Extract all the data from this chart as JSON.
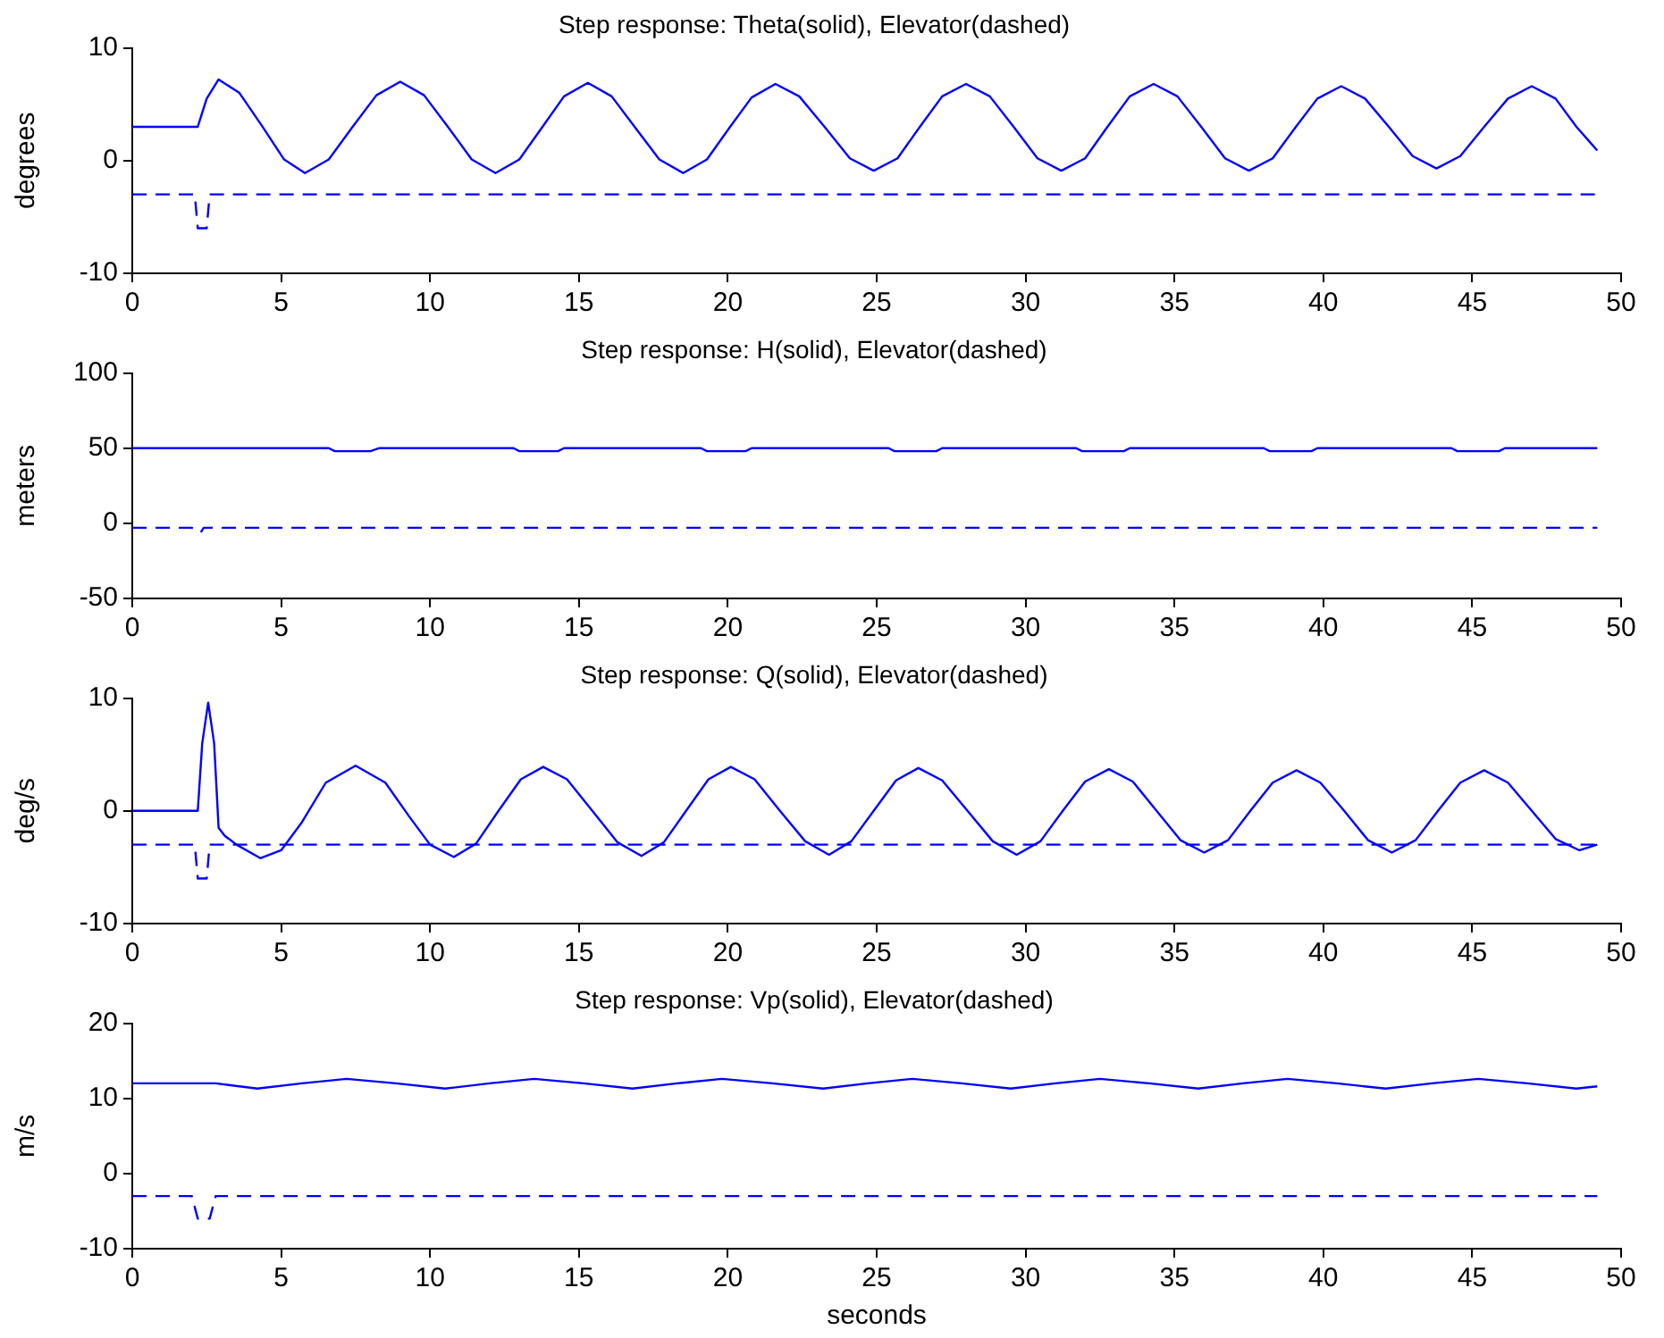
{
  "chart_data": [
    {
      "type": "line",
      "title": "Step response: Theta(solid), Elevator(dashed)",
      "ylabel": "degrees",
      "xlim": [
        0,
        50
      ],
      "xticks": [
        0,
        5,
        10,
        15,
        20,
        25,
        30,
        35,
        40,
        45,
        50
      ],
      "ylim": [
        -10,
        10
      ],
      "yticks": [
        -10,
        0,
        10
      ],
      "grid": false,
      "series": [
        {
          "color": "#0000ff",
          "line_style": "solid",
          "x": [
            0,
            2.2,
            2.5,
            2.9,
            3.6,
            4.35,
            5.1,
            5.8,
            6.6,
            7.4,
            8.2,
            9.0,
            9.8,
            10.6,
            11.4,
            12.2,
            13.0,
            13.75,
            14.5,
            15.3,
            16.1,
            16.9,
            17.7,
            18.5,
            19.3,
            20.05,
            20.8,
            21.6,
            22.4,
            23.25,
            24.1,
            24.9,
            25.7,
            26.45,
            27.2,
            28.0,
            28.8,
            29.6,
            30.4,
            31.2,
            32.0,
            32.75,
            33.5,
            34.3,
            35.1,
            35.9,
            36.7,
            37.5,
            38.3,
            39.05,
            39.8,
            40.6,
            41.4,
            42.2,
            43.0,
            43.8,
            44.6,
            45.4,
            46.2,
            47.0,
            47.8,
            48.5,
            49.2
          ],
          "values": [
            3,
            3,
            5.5,
            7.2,
            6.0,
            3.1,
            0.1,
            -1.1,
            0.1,
            3.0,
            5.8,
            7.0,
            5.8,
            3.0,
            0.1,
            -1.1,
            0.1,
            2.9,
            5.7,
            6.9,
            5.7,
            2.9,
            0.1,
            -1.1,
            0.1,
            2.9,
            5.6,
            6.8,
            5.7,
            3.0,
            0.2,
            -0.9,
            0.2,
            3.0,
            5.7,
            6.8,
            5.7,
            3.0,
            0.2,
            -0.9,
            0.2,
            3.0,
            5.7,
            6.8,
            5.7,
            3.0,
            0.2,
            -0.9,
            0.2,
            2.9,
            5.5,
            6.6,
            5.5,
            3.0,
            0.4,
            -0.7,
            0.4,
            3.0,
            5.5,
            6.6,
            5.5,
            3.0,
            0.9
          ]
        },
        {
          "color": "#0000ff",
          "line_style": "dashed",
          "x": [
            0,
            2.1,
            2.2,
            2.5,
            2.6,
            49.2
          ],
          "values": [
            -3,
            -3,
            -6,
            -6,
            -3,
            -3
          ]
        }
      ]
    },
    {
      "type": "line",
      "title": "Step response: H(solid), Elevator(dashed)",
      "ylabel": "meters",
      "xlim": [
        0,
        50
      ],
      "xticks": [
        0,
        5,
        10,
        15,
        20,
        25,
        30,
        35,
        40,
        45,
        50
      ],
      "ylim": [
        -50,
        100
      ],
      "yticks": [
        -50,
        0,
        50,
        100
      ],
      "grid": false,
      "series": [
        {
          "color": "#0000ff",
          "line_style": "solid",
          "x": [
            0,
            6.6,
            6.8,
            8.0,
            8.3,
            12.8,
            13.0,
            14.3,
            14.5,
            19.1,
            19.3,
            20.6,
            20.8,
            25.4,
            25.6,
            27.0,
            27.2,
            31.7,
            31.9,
            33.3,
            33.5,
            38.0,
            38.2,
            39.6,
            39.8,
            44.3,
            44.5,
            45.9,
            46.1,
            49.2
          ],
          "values": [
            50,
            50,
            48,
            48,
            50,
            50,
            48,
            48,
            50,
            50,
            48,
            48,
            50,
            50,
            48,
            48,
            50,
            50,
            48,
            48,
            50,
            50,
            48,
            48,
            50,
            50,
            48,
            48,
            50,
            50
          ]
        },
        {
          "color": "#0000ff",
          "line_style": "dashed",
          "x": [
            0,
            2.0,
            2.3,
            2.4,
            49.2
          ],
          "values": [
            -3,
            -3,
            -6,
            -3,
            -3
          ]
        }
      ]
    },
    {
      "type": "line",
      "title": "Step response: Q(solid), Elevator(dashed)",
      "ylabel": "deg/s",
      "xlim": [
        0,
        50
      ],
      "xticks": [
        0,
        5,
        10,
        15,
        20,
        25,
        30,
        35,
        40,
        45,
        50
      ],
      "ylim": [
        -10,
        10
      ],
      "yticks": [
        -10,
        0,
        10
      ],
      "grid": false,
      "series": [
        {
          "color": "#0000ff",
          "line_style": "solid",
          "x": [
            0,
            2.2,
            2.35,
            2.55,
            2.75,
            2.9,
            3.1,
            3.5,
            4.3,
            5.0,
            5.7,
            6.5,
            7.5,
            8.5,
            9.3,
            10.0,
            10.8,
            11.55,
            12.3,
            13.05,
            13.8,
            14.6,
            15.45,
            16.3,
            17.1,
            17.85,
            18.6,
            19.35,
            20.1,
            20.9,
            21.75,
            22.6,
            23.4,
            24.15,
            24.9,
            25.65,
            26.4,
            27.2,
            28.05,
            28.9,
            29.7,
            30.5,
            31.25,
            32.0,
            32.8,
            33.6,
            34.4,
            35.2,
            36.0,
            36.8,
            37.55,
            38.3,
            39.1,
            39.9,
            40.7,
            41.5,
            42.3,
            43.1,
            43.85,
            44.6,
            45.4,
            46.2,
            47.0,
            47.8,
            48.6,
            49.2
          ],
          "values": [
            0,
            0,
            6,
            9.6,
            6,
            -1.5,
            -2.2,
            -3,
            -4.2,
            -3.5,
            -1,
            2.5,
            4,
            2.5,
            -0.5,
            -3,
            -4.1,
            -2.9,
            0,
            2.8,
            3.9,
            2.8,
            0,
            -2.8,
            -4.0,
            -2.8,
            0,
            2.8,
            3.9,
            2.8,
            0,
            -2.7,
            -3.9,
            -2.7,
            0,
            2.7,
            3.8,
            2.7,
            0,
            -2.7,
            -3.9,
            -2.7,
            0,
            2.6,
            3.7,
            2.6,
            0,
            -2.6,
            -3.7,
            -2.6,
            0,
            2.5,
            3.6,
            2.5,
            0,
            -2.6,
            -3.7,
            -2.6,
            0,
            2.5,
            3.6,
            2.5,
            0,
            -2.5,
            -3.5,
            -3.0
          ]
        },
        {
          "color": "#0000ff",
          "line_style": "dashed",
          "x": [
            0,
            2.1,
            2.2,
            2.5,
            2.6,
            49.2
          ],
          "values": [
            -3,
            -3,
            -6,
            -6,
            -3,
            -3
          ]
        }
      ]
    },
    {
      "type": "line",
      "title": "Step response: Vp(solid), Elevator(dashed)",
      "ylabel": "m/s",
      "xlabel": "seconds",
      "xlim": [
        0,
        50
      ],
      "xticks": [
        0,
        5,
        10,
        15,
        20,
        25,
        30,
        35,
        40,
        45,
        50
      ],
      "ylim": [
        -10,
        20
      ],
      "yticks": [
        -10,
        0,
        10,
        20
      ],
      "grid": false,
      "series": [
        {
          "color": "#0000ff",
          "line_style": "solid",
          "x": [
            0,
            2.8,
            4.2,
            5.7,
            7.2,
            8.85,
            10.5,
            12.0,
            13.5,
            15.15,
            16.8,
            18.3,
            19.8,
            21.5,
            23.2,
            24.7,
            26.2,
            27.85,
            29.5,
            31.0,
            32.5,
            34.15,
            35.8,
            37.3,
            38.8,
            40.45,
            42.1,
            43.65,
            45.2,
            46.85,
            48.5,
            49.2
          ],
          "values": [
            12,
            12,
            11.3,
            12,
            12.6,
            12,
            11.3,
            12,
            12.6,
            12,
            11.3,
            12,
            12.6,
            12,
            11.3,
            12,
            12.6,
            12,
            11.3,
            12,
            12.6,
            12,
            11.3,
            12,
            12.6,
            12,
            11.3,
            12,
            12.6,
            12,
            11.3,
            11.6
          ]
        },
        {
          "color": "#0000ff",
          "line_style": "dashed",
          "x": [
            0,
            2.0,
            2.2,
            2.6,
            2.8,
            49.2
          ],
          "values": [
            -3,
            -3,
            -6,
            -6,
            -3,
            -3
          ]
        }
      ]
    }
  ]
}
